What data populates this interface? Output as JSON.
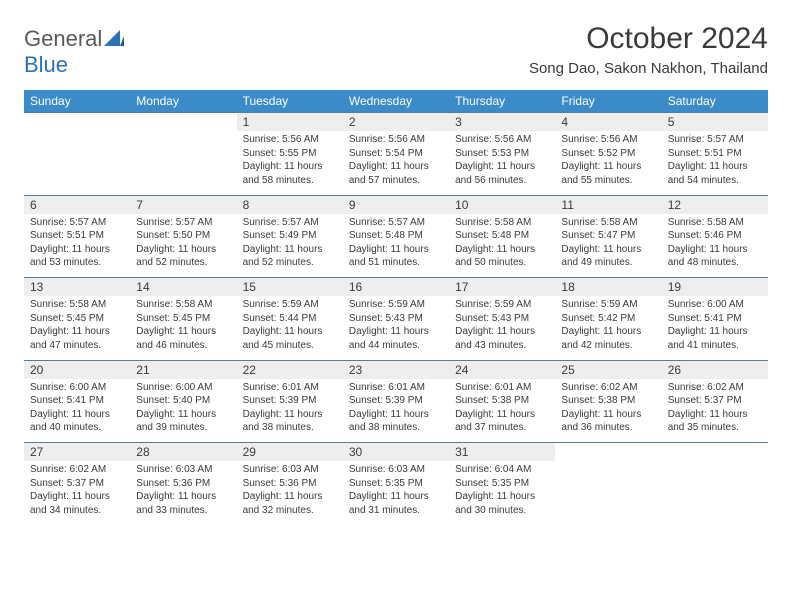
{
  "logo": {
    "text1": "General",
    "text2": "Blue"
  },
  "title": "October 2024",
  "location": "Song Dao, Sakon Nakhon, Thailand",
  "weekdays": [
    "Sunday",
    "Monday",
    "Tuesday",
    "Wednesday",
    "Thursday",
    "Friday",
    "Saturday"
  ],
  "colors": {
    "header_bg": "#3b8bc9",
    "header_fg": "#ffffff",
    "daynum_bg": "#eeeeee",
    "row_border": "#5a7a9a"
  },
  "startOffset": 2,
  "days": [
    {
      "n": 1,
      "sunrise": "5:56 AM",
      "sunset": "5:55 PM",
      "daylight": "11 hours and 58 minutes."
    },
    {
      "n": 2,
      "sunrise": "5:56 AM",
      "sunset": "5:54 PM",
      "daylight": "11 hours and 57 minutes."
    },
    {
      "n": 3,
      "sunrise": "5:56 AM",
      "sunset": "5:53 PM",
      "daylight": "11 hours and 56 minutes."
    },
    {
      "n": 4,
      "sunrise": "5:56 AM",
      "sunset": "5:52 PM",
      "daylight": "11 hours and 55 minutes."
    },
    {
      "n": 5,
      "sunrise": "5:57 AM",
      "sunset": "5:51 PM",
      "daylight": "11 hours and 54 minutes."
    },
    {
      "n": 6,
      "sunrise": "5:57 AM",
      "sunset": "5:51 PM",
      "daylight": "11 hours and 53 minutes."
    },
    {
      "n": 7,
      "sunrise": "5:57 AM",
      "sunset": "5:50 PM",
      "daylight": "11 hours and 52 minutes."
    },
    {
      "n": 8,
      "sunrise": "5:57 AM",
      "sunset": "5:49 PM",
      "daylight": "11 hours and 52 minutes."
    },
    {
      "n": 9,
      "sunrise": "5:57 AM",
      "sunset": "5:48 PM",
      "daylight": "11 hours and 51 minutes."
    },
    {
      "n": 10,
      "sunrise": "5:58 AM",
      "sunset": "5:48 PM",
      "daylight": "11 hours and 50 minutes."
    },
    {
      "n": 11,
      "sunrise": "5:58 AM",
      "sunset": "5:47 PM",
      "daylight": "11 hours and 49 minutes."
    },
    {
      "n": 12,
      "sunrise": "5:58 AM",
      "sunset": "5:46 PM",
      "daylight": "11 hours and 48 minutes."
    },
    {
      "n": 13,
      "sunrise": "5:58 AM",
      "sunset": "5:45 PM",
      "daylight": "11 hours and 47 minutes."
    },
    {
      "n": 14,
      "sunrise": "5:58 AM",
      "sunset": "5:45 PM",
      "daylight": "11 hours and 46 minutes."
    },
    {
      "n": 15,
      "sunrise": "5:59 AM",
      "sunset": "5:44 PM",
      "daylight": "11 hours and 45 minutes."
    },
    {
      "n": 16,
      "sunrise": "5:59 AM",
      "sunset": "5:43 PM",
      "daylight": "11 hours and 44 minutes."
    },
    {
      "n": 17,
      "sunrise": "5:59 AM",
      "sunset": "5:43 PM",
      "daylight": "11 hours and 43 minutes."
    },
    {
      "n": 18,
      "sunrise": "5:59 AM",
      "sunset": "5:42 PM",
      "daylight": "11 hours and 42 minutes."
    },
    {
      "n": 19,
      "sunrise": "6:00 AM",
      "sunset": "5:41 PM",
      "daylight": "11 hours and 41 minutes."
    },
    {
      "n": 20,
      "sunrise": "6:00 AM",
      "sunset": "5:41 PM",
      "daylight": "11 hours and 40 minutes."
    },
    {
      "n": 21,
      "sunrise": "6:00 AM",
      "sunset": "5:40 PM",
      "daylight": "11 hours and 39 minutes."
    },
    {
      "n": 22,
      "sunrise": "6:01 AM",
      "sunset": "5:39 PM",
      "daylight": "11 hours and 38 minutes."
    },
    {
      "n": 23,
      "sunrise": "6:01 AM",
      "sunset": "5:39 PM",
      "daylight": "11 hours and 38 minutes."
    },
    {
      "n": 24,
      "sunrise": "6:01 AM",
      "sunset": "5:38 PM",
      "daylight": "11 hours and 37 minutes."
    },
    {
      "n": 25,
      "sunrise": "6:02 AM",
      "sunset": "5:38 PM",
      "daylight": "11 hours and 36 minutes."
    },
    {
      "n": 26,
      "sunrise": "6:02 AM",
      "sunset": "5:37 PM",
      "daylight": "11 hours and 35 minutes."
    },
    {
      "n": 27,
      "sunrise": "6:02 AM",
      "sunset": "5:37 PM",
      "daylight": "11 hours and 34 minutes."
    },
    {
      "n": 28,
      "sunrise": "6:03 AM",
      "sunset": "5:36 PM",
      "daylight": "11 hours and 33 minutes."
    },
    {
      "n": 29,
      "sunrise": "6:03 AM",
      "sunset": "5:36 PM",
      "daylight": "11 hours and 32 minutes."
    },
    {
      "n": 30,
      "sunrise": "6:03 AM",
      "sunset": "5:35 PM",
      "daylight": "11 hours and 31 minutes."
    },
    {
      "n": 31,
      "sunrise": "6:04 AM",
      "sunset": "5:35 PM",
      "daylight": "11 hours and 30 minutes."
    }
  ],
  "labels": {
    "sunrise": "Sunrise:",
    "sunset": "Sunset:",
    "daylight": "Daylight:"
  }
}
